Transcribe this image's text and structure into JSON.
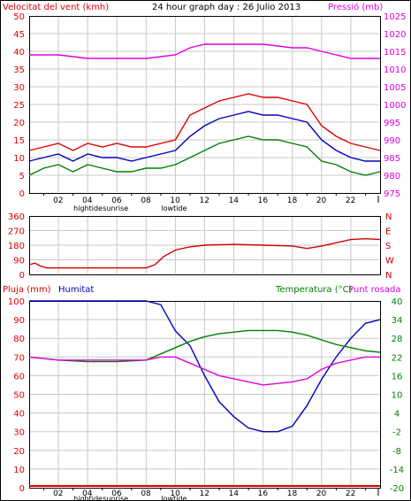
{
  "header": {
    "wind_label": "Velocitat del vent (kmh)",
    "title": "24 hour graph day : 26 Julio 2013",
    "pressure_label": "Pressió (mb)"
  },
  "bottom_header": {
    "rain_label": "Pluja (mm)",
    "hum_label": "Humitat",
    "temp_label": "Temperatura (°C)",
    "dew_label": "Punt rosada"
  },
  "time_axis": {
    "hour_labels": [
      "02",
      "04",
      "06",
      "08",
      "10",
      "12",
      "14",
      "16",
      "18",
      "20",
      "22"
    ],
    "events": [
      "hightide",
      "sunrise",
      "lowtide"
    ]
  },
  "colors": {
    "wind_gust": "#e00000",
    "wind_avg": "#0000c0",
    "wind_min": "#008000",
    "pressure": "#e000e0",
    "direction": "#d00000",
    "humidity": "#0000c0",
    "temperature": "#008000",
    "dewpoint": "#e000e0",
    "rain": "#e00000",
    "grid": "#c8c8c8"
  },
  "chart_data": [
    {
      "type": "line",
      "title": "24 hour graph day : 26 Julio 2013",
      "x_unit": "hour",
      "xlim": [
        0,
        24
      ],
      "y_left_label": "Velocitat del vent (kmh)",
      "y_left_ticks": [
        0,
        5,
        10,
        15,
        20,
        25,
        30,
        35,
        40,
        45,
        50
      ],
      "ylim_left": [
        0,
        50
      ],
      "y_right_label": "Pressió (mb)",
      "y_right_ticks": [
        975,
        980,
        985,
        990,
        995,
        1000,
        1005,
        1010,
        1015,
        1020,
        1025
      ],
      "ylim_right": [
        975,
        1025
      ],
      "grid": true,
      "x_ticks": [
        "02",
        "04",
        "06",
        "08",
        "10",
        "12",
        "14",
        "16",
        "18",
        "20",
        "22"
      ],
      "series": [
        {
          "name": "gust",
          "axis": "left",
          "x": [
            0,
            1,
            2,
            3,
            4,
            5,
            6,
            7,
            8,
            9,
            10,
            11,
            12,
            13,
            14,
            15,
            16,
            17,
            18,
            19,
            20,
            21,
            22,
            23,
            24
          ],
          "y": [
            12,
            13,
            14,
            12,
            14,
            13,
            14,
            13,
            13,
            14,
            15,
            22,
            24,
            26,
            27,
            28,
            27,
            27,
            26,
            25,
            19,
            16,
            14,
            13,
            12
          ]
        },
        {
          "name": "average",
          "axis": "left",
          "x": [
            0,
            1,
            2,
            3,
            4,
            5,
            6,
            7,
            8,
            9,
            10,
            11,
            12,
            13,
            14,
            15,
            16,
            17,
            18,
            19,
            20,
            21,
            22,
            23,
            24
          ],
          "y": [
            9,
            10,
            11,
            9,
            11,
            10,
            10,
            9,
            10,
            11,
            12,
            16,
            19,
            21,
            22,
            23,
            22,
            22,
            21,
            20,
            15,
            12,
            10,
            9,
            9
          ]
        },
        {
          "name": "min",
          "axis": "left",
          "x": [
            0,
            1,
            2,
            3,
            4,
            5,
            6,
            7,
            8,
            9,
            10,
            11,
            12,
            13,
            14,
            15,
            16,
            17,
            18,
            19,
            20,
            21,
            22,
            23,
            24
          ],
          "y": [
            5,
            7,
            8,
            6,
            8,
            7,
            6,
            6,
            7,
            7,
            8,
            10,
            12,
            14,
            15,
            16,
            15,
            15,
            14,
            13,
            9,
            8,
            6,
            5,
            6
          ]
        },
        {
          "name": "pressure",
          "axis": "right",
          "x": [
            0,
            2,
            4,
            6,
            8,
            10,
            11,
            12,
            14,
            16,
            18,
            19,
            20,
            21,
            22,
            24
          ],
          "y": [
            1014,
            1014,
            1013,
            1013,
            1013,
            1014,
            1016,
            1017,
            1017,
            1017,
            1016,
            1016,
            1015,
            1014,
            1013,
            1013
          ]
        }
      ]
    },
    {
      "type": "line",
      "x_unit": "hour",
      "xlim": [
        0,
        24
      ],
      "y_left_ticks": [
        0,
        90,
        180,
        270,
        360
      ],
      "ylim": [
        0,
        360
      ],
      "y_right_ticks": [
        "N",
        "W",
        "S",
        "E",
        "N"
      ],
      "grid": true,
      "series": [
        {
          "name": "direction",
          "x": [
            0,
            0.4,
            0.8,
            1.2,
            2,
            4,
            6,
            8,
            8.6,
            9.2,
            10,
            11,
            12,
            14,
            16,
            18,
            19,
            20,
            21,
            22,
            23,
            24
          ],
          "y": [
            60,
            70,
            50,
            40,
            40,
            40,
            40,
            40,
            60,
            110,
            150,
            170,
            180,
            185,
            180,
            175,
            160,
            175,
            195,
            215,
            220,
            215
          ]
        }
      ]
    },
    {
      "type": "line",
      "x_unit": "hour",
      "xlim": [
        0,
        24
      ],
      "y_left_ticks": [
        0,
        10,
        20,
        30,
        40,
        50,
        60,
        70,
        80,
        90,
        100
      ],
      "ylim_left": [
        0,
        100
      ],
      "y_right_ticks": [
        -20,
        -14,
        -8,
        -2,
        4,
        10,
        16,
        22,
        28,
        34,
        40
      ],
      "ylim_right": [
        -20,
        40
      ],
      "grid": true,
      "series": [
        {
          "name": "humidity",
          "axis": "left",
          "x": [
            0,
            2,
            4,
            6,
            8,
            9,
            10,
            11,
            12,
            13,
            14,
            15,
            16,
            17,
            18,
            19,
            20,
            21,
            22,
            23,
            24
          ],
          "y": [
            100,
            100,
            100,
            100,
            100,
            98,
            84,
            76,
            60,
            46,
            38,
            32,
            30,
            30,
            33,
            44,
            58,
            70,
            80,
            88,
            90
          ]
        },
        {
          "name": "temperature",
          "axis": "right",
          "x": [
            0,
            2,
            4,
            6,
            8,
            9,
            10,
            11,
            12,
            13,
            14,
            15,
            16,
            17,
            18,
            19,
            20,
            21,
            22,
            23,
            24
          ],
          "y": [
            22,
            21,
            20.5,
            20.5,
            21,
            23,
            25,
            27,
            28.5,
            29.5,
            30,
            30.5,
            30.5,
            30.5,
            30,
            29,
            27.5,
            26,
            25,
            24,
            23.5
          ]
        },
        {
          "name": "dewpoint",
          "axis": "right",
          "x": [
            0,
            2,
            4,
            6,
            8,
            9,
            10,
            11,
            12,
            13,
            14,
            15,
            16,
            17,
            18,
            19,
            20,
            21,
            22,
            23,
            24
          ],
          "y": [
            22,
            21,
            21,
            21,
            21,
            22,
            22,
            20,
            18,
            16,
            15,
            14,
            13,
            13.5,
            14,
            15,
            18,
            20,
            21,
            22,
            22
          ]
        },
        {
          "name": "rain",
          "axis": "left",
          "x": [
            0,
            24
          ],
          "y": [
            0,
            0
          ]
        }
      ]
    }
  ]
}
